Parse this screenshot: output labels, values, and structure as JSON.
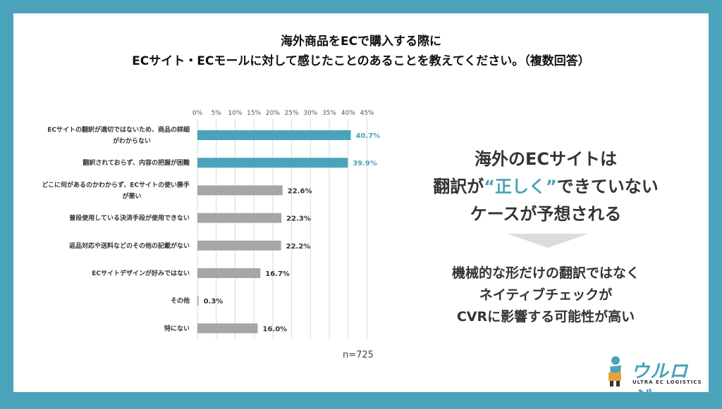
{
  "title": {
    "line1": "海外商品をECで購入する際に",
    "line2": "ECサイト・ECモールに対して感じたことのあることを教えてください。（複数回答）"
  },
  "chart_data": {
    "type": "bar",
    "orientation": "horizontal",
    "categories": [
      [
        "ECサイトの翻訳が適切ではないため、商品の詳細",
        "がわからない"
      ],
      [
        "翻訳されておらず、内容の把握が困難"
      ],
      [
        "どこに何があるのかわからず、ECサイトの使い勝手",
        "が悪い"
      ],
      [
        "普段使用している決済手段が使用できない"
      ],
      [
        "返品対応や送料などのその他の記載がない"
      ],
      [
        "ECサイトデザインが好みではない"
      ],
      [
        "その他"
      ],
      [
        "特にない"
      ]
    ],
    "values": [
      40.7,
      39.9,
      22.6,
      22.3,
      22.2,
      16.7,
      0.3,
      16.0
    ],
    "value_labels": [
      "40.7%",
      "39.9%",
      "22.6%",
      "22.3%",
      "22.2%",
      "16.7%",
      "0.3%",
      "16.0%"
    ],
    "highlight": [
      true,
      true,
      false,
      false,
      false,
      false,
      false,
      false
    ],
    "xlim": [
      0,
      45
    ],
    "x_ticks": [
      "0%",
      "5%",
      "10%",
      "15%",
      "20%",
      "25%",
      "30%",
      "35%",
      "40%",
      "45%"
    ],
    "tick_step": 5,
    "n_label": "n=725",
    "colors": {
      "highlight": "#4aa3ba",
      "normal": "#a6a6a6",
      "grid": "#d9d9d9"
    }
  },
  "side": {
    "head_line1": "海外のECサイトは",
    "head_line2_a": "翻訳が",
    "head_line2_hl": "“正しく”",
    "head_line2_b": "できていない",
    "head_line3": "ケースが予想される",
    "sub_line1": "機械的な形だけの翻訳ではなく",
    "sub_line2": "ネイティブチェックが",
    "sub_line3": "CVRに影響する可能性が高い"
  },
  "logo": {
    "name": "ウルロジ",
    "tagline": "ULTRA EC LOGISTICS"
  },
  "colors": {
    "frame": "#4aa3ba",
    "accent": "#4aa3ba"
  }
}
